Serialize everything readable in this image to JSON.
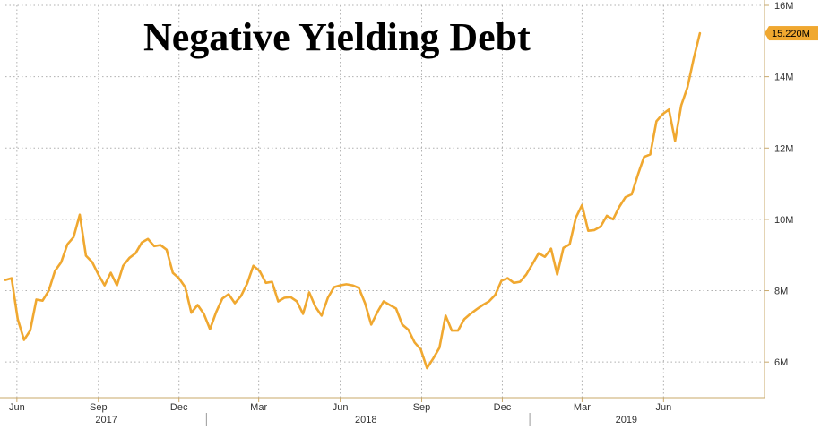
{
  "chart_data": {
    "type": "line",
    "title": "Negative Yielding Debt",
    "xlabel": "",
    "ylabel": "",
    "y_unit": "M",
    "ylim": [
      5,
      16
    ],
    "y_ticks": [
      {
        "value": 6,
        "label": "6M"
      },
      {
        "value": 8,
        "label": "8M"
      },
      {
        "value": 10,
        "label": "10M"
      },
      {
        "value": 12,
        "label": "12M"
      },
      {
        "value": 14,
        "label": "14M"
      },
      {
        "value": 16,
        "label": "16M"
      }
    ],
    "xlim": [
      "2017-05-19",
      "2019-09-23"
    ],
    "x_ticks": [
      {
        "date": "2017-06-01",
        "label": "Jun"
      },
      {
        "date": "2017-09-01",
        "label": "Sep"
      },
      {
        "date": "2017-12-01",
        "label": "Dec"
      },
      {
        "date": "2018-03-01",
        "label": "Mar"
      },
      {
        "date": "2018-06-01",
        "label": "Jun"
      },
      {
        "date": "2018-09-01",
        "label": "Sep"
      },
      {
        "date": "2018-12-01",
        "label": "Dec"
      },
      {
        "date": "2019-03-01",
        "label": "Mar"
      },
      {
        "date": "2019-06-01",
        "label": "Jun"
      }
    ],
    "year_labels": [
      {
        "label": "2017",
        "date": "2017-09-10"
      },
      {
        "label": "2018",
        "date": "2018-06-30"
      },
      {
        "label": "2019",
        "date": "2019-04-20"
      }
    ],
    "year_dividers": [
      "2018-01-01",
      "2019-01-01"
    ],
    "grid": true,
    "last_value_label": "15.220M",
    "colors": {
      "line": "#f0a830",
      "label_bg": "#f0a830",
      "grid": "#b0b0b0",
      "axis": "#c9a86a"
    },
    "series": [
      {
        "points": [
          [
            "2017-05-19",
            8.3
          ],
          [
            "2017-05-26",
            8.35
          ],
          [
            "2017-06-02",
            7.2
          ],
          [
            "2017-06-09",
            6.62
          ],
          [
            "2017-06-16",
            6.88
          ],
          [
            "2017-06-23",
            7.75
          ],
          [
            "2017-06-30",
            7.72
          ],
          [
            "2017-07-07",
            8.0
          ],
          [
            "2017-07-14",
            8.55
          ],
          [
            "2017-07-21",
            8.8
          ],
          [
            "2017-07-28",
            9.3
          ],
          [
            "2017-08-04",
            9.5
          ],
          [
            "2017-08-11",
            10.13
          ],
          [
            "2017-08-18",
            8.98
          ],
          [
            "2017-08-25",
            8.8
          ],
          [
            "2017-09-01",
            8.45
          ],
          [
            "2017-09-08",
            8.15
          ],
          [
            "2017-09-15",
            8.5
          ],
          [
            "2017-09-22",
            8.15
          ],
          [
            "2017-09-29",
            8.7
          ],
          [
            "2017-10-06",
            8.92
          ],
          [
            "2017-10-13",
            9.05
          ],
          [
            "2017-10-20",
            9.35
          ],
          [
            "2017-10-27",
            9.45
          ],
          [
            "2017-11-03",
            9.25
          ],
          [
            "2017-11-10",
            9.28
          ],
          [
            "2017-11-17",
            9.15
          ],
          [
            "2017-11-24",
            8.5
          ],
          [
            "2017-12-01",
            8.35
          ],
          [
            "2017-12-08",
            8.1
          ],
          [
            "2017-12-15",
            7.38
          ],
          [
            "2017-12-22",
            7.6
          ],
          [
            "2017-12-29",
            7.35
          ],
          [
            "2018-01-05",
            6.92
          ],
          [
            "2018-01-12",
            7.4
          ],
          [
            "2018-01-19",
            7.78
          ],
          [
            "2018-01-26",
            7.9
          ],
          [
            "2018-02-02",
            7.65
          ],
          [
            "2018-02-09",
            7.85
          ],
          [
            "2018-02-16",
            8.2
          ],
          [
            "2018-02-23",
            8.7
          ],
          [
            "2018-03-02",
            8.55
          ],
          [
            "2018-03-09",
            8.22
          ],
          [
            "2018-03-16",
            8.25
          ],
          [
            "2018-03-23",
            7.7
          ],
          [
            "2018-03-30",
            7.8
          ],
          [
            "2018-04-06",
            7.82
          ],
          [
            "2018-04-13",
            7.7
          ],
          [
            "2018-04-20",
            7.35
          ],
          [
            "2018-04-27",
            7.95
          ],
          [
            "2018-05-04",
            7.55
          ],
          [
            "2018-05-11",
            7.3
          ],
          [
            "2018-05-18",
            7.8
          ],
          [
            "2018-05-25",
            8.1
          ],
          [
            "2018-06-01",
            8.15
          ],
          [
            "2018-06-08",
            8.18
          ],
          [
            "2018-06-15",
            8.15
          ],
          [
            "2018-06-22",
            8.08
          ],
          [
            "2018-06-29",
            7.65
          ],
          [
            "2018-07-06",
            7.05
          ],
          [
            "2018-07-13",
            7.4
          ],
          [
            "2018-07-20",
            7.7
          ],
          [
            "2018-07-27",
            7.6
          ],
          [
            "2018-08-03",
            7.5
          ],
          [
            "2018-08-10",
            7.05
          ],
          [
            "2018-08-17",
            6.9
          ],
          [
            "2018-08-24",
            6.55
          ],
          [
            "2018-08-31",
            6.35
          ],
          [
            "2018-09-07",
            5.83
          ],
          [
            "2018-09-14",
            6.1
          ],
          [
            "2018-09-21",
            6.4
          ],
          [
            "2018-09-28",
            7.3
          ],
          [
            "2018-10-05",
            6.88
          ],
          [
            "2018-10-12",
            6.88
          ],
          [
            "2018-10-19",
            7.2
          ],
          [
            "2018-10-26",
            7.35
          ],
          [
            "2018-11-02",
            7.48
          ],
          [
            "2018-11-09",
            7.6
          ],
          [
            "2018-11-16",
            7.7
          ],
          [
            "2018-11-23",
            7.88
          ],
          [
            "2018-11-30",
            8.28
          ],
          [
            "2018-12-07",
            8.35
          ],
          [
            "2018-12-14",
            8.22
          ],
          [
            "2018-12-21",
            8.25
          ],
          [
            "2018-12-28",
            8.45
          ],
          [
            "2019-01-04",
            8.75
          ],
          [
            "2019-01-11",
            9.05
          ],
          [
            "2019-01-18",
            8.95
          ],
          [
            "2019-01-25",
            9.18
          ],
          [
            "2019-02-01",
            8.45
          ],
          [
            "2019-02-08",
            9.2
          ],
          [
            "2019-02-15",
            9.3
          ],
          [
            "2019-02-22",
            10.05
          ],
          [
            "2019-03-01",
            10.4
          ],
          [
            "2019-03-08",
            9.68
          ],
          [
            "2019-03-15",
            9.7
          ],
          [
            "2019-03-22",
            9.8
          ],
          [
            "2019-03-29",
            10.1
          ],
          [
            "2019-04-05",
            10.0
          ],
          [
            "2019-04-12",
            10.35
          ],
          [
            "2019-04-19",
            10.62
          ],
          [
            "2019-04-26",
            10.7
          ],
          [
            "2019-05-03",
            11.25
          ],
          [
            "2019-05-10",
            11.75
          ],
          [
            "2019-05-17",
            11.82
          ],
          [
            "2019-05-24",
            12.75
          ],
          [
            "2019-05-31",
            12.95
          ],
          [
            "2019-06-07",
            13.08
          ],
          [
            "2019-06-14",
            12.2
          ],
          [
            "2019-06-21",
            13.2
          ],
          [
            "2019-06-28",
            13.7
          ],
          [
            "2019-07-05",
            14.5
          ],
          [
            "2019-07-12",
            15.22
          ]
        ]
      }
    ]
  }
}
